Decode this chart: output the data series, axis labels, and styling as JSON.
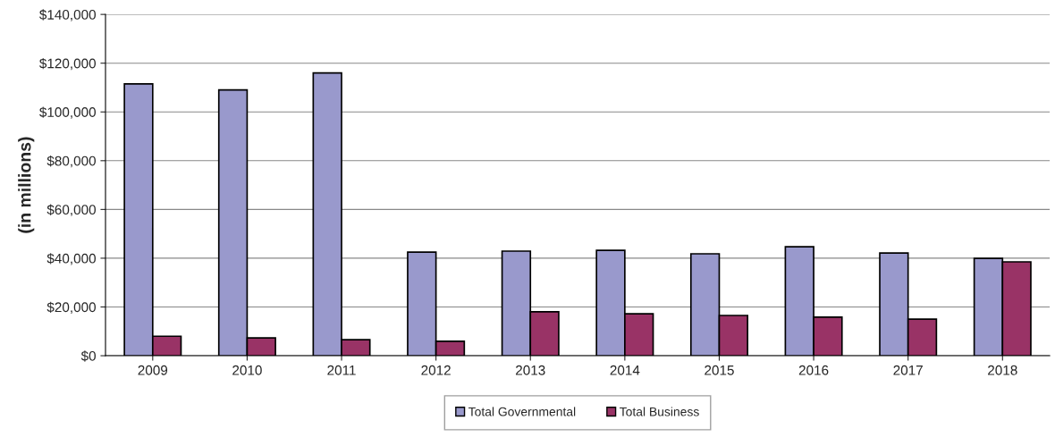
{
  "chart_data": {
    "type": "bar",
    "ylabel": "(in millions)",
    "categories": [
      "2009",
      "2010",
      "2011",
      "2012",
      "2013",
      "2014",
      "2015",
      "2016",
      "2017",
      "2018"
    ],
    "series": [
      {
        "name": "Total Governmental",
        "color": "#9999cc",
        "values": [
          111500,
          109000,
          116000,
          42500,
          42900,
          43200,
          41800,
          44700,
          42100,
          39900
        ]
      },
      {
        "name": "Total Business",
        "color": "#993366",
        "values": [
          8000,
          7300,
          6600,
          5900,
          18000,
          17200,
          16500,
          15800,
          15000,
          38500
        ]
      }
    ],
    "ylim": [
      0,
      140000
    ],
    "yticks": [
      {
        "value": 0,
        "label": "$0"
      },
      {
        "value": 20000,
        "label": "$20,000"
      },
      {
        "value": 40000,
        "label": "$40,000"
      },
      {
        "value": 60000,
        "label": "$60,000"
      },
      {
        "value": 80000,
        "label": "$80,000"
      },
      {
        "value": 100000,
        "label": "$100,000"
      },
      {
        "value": 120000,
        "label": "$120,000"
      },
      {
        "value": 140000,
        "label": "$140,000"
      }
    ],
    "grid": "y",
    "legend": "bottom"
  }
}
